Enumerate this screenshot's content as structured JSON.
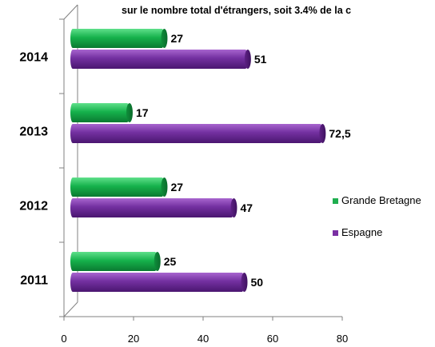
{
  "chart_data": {
    "type": "bar",
    "orientation": "horizontal",
    "title": "sur le nombre total d'étrangers, soit 3.4% de la c",
    "categories": [
      "2014",
      "2013",
      "2012",
      "2011"
    ],
    "series": [
      {
        "name": "Grande Bretagne",
        "color": "#1fae4f",
        "values": [
          27,
          17,
          27,
          25
        ],
        "labels": [
          "27",
          "17",
          "27",
          "25"
        ]
      },
      {
        "name": "Espagne",
        "color": "#7a2fa3",
        "values": [
          51,
          72.5,
          47,
          50
        ],
        "labels": [
          "51",
          "72,5",
          "47",
          "50"
        ]
      }
    ],
    "xlim": [
      0,
      80
    ],
    "xticks": [
      "0",
      "20",
      "40",
      "60",
      "80"
    ],
    "xlabel": "",
    "ylabel": "",
    "legend_position": "right",
    "grid": false
  }
}
